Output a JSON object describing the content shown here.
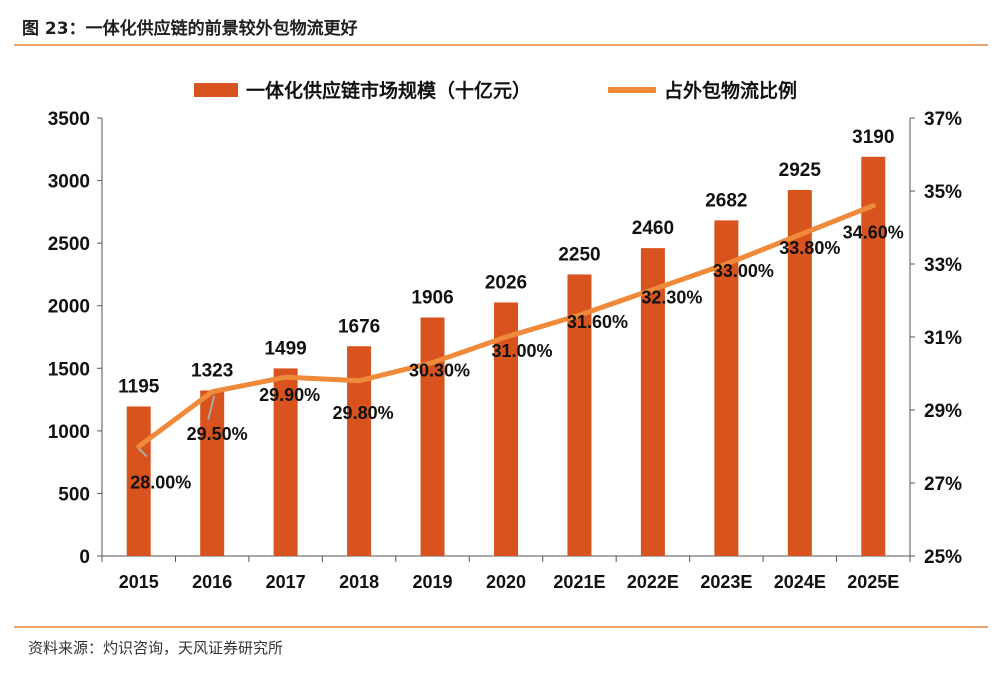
{
  "header": {
    "title": "图 23：一体化供应链的前景较外包物流更好"
  },
  "footer": {
    "source": "资料来源：灼识咨询，天风证券研究所"
  },
  "colors": {
    "bar": "#d9531e",
    "line": "#ef8a3a",
    "rule": "#e9a56c",
    "leader": "#aaaaaa"
  },
  "chart_data": {
    "type": "bar",
    "categories": [
      "2015",
      "2016",
      "2017",
      "2018",
      "2019",
      "2020",
      "2021E",
      "2022E",
      "2023E",
      "2024E",
      "2025E"
    ],
    "series": [
      {
        "name": "一体化供应链市场规模（十亿元）",
        "type": "bar",
        "axis": "left",
        "values": [
          1195,
          1323,
          1499,
          1676,
          1906,
          2026,
          2250,
          2460,
          2682,
          2925,
          3190
        ],
        "labels": [
          "1195",
          "1323",
          "1499",
          "1676",
          "1906",
          "2026",
          "2250",
          "2460",
          "2682",
          "2925",
          "3190"
        ]
      },
      {
        "name": "占外包物流比例",
        "type": "line",
        "axis": "right",
        "values": [
          28.0,
          29.5,
          29.9,
          29.8,
          30.3,
          31.0,
          31.6,
          32.3,
          33.0,
          33.8,
          34.6
        ],
        "labels": [
          "28.00%",
          "29.50%",
          "29.90%",
          "29.80%",
          "30.30%",
          "31.00%",
          "31.60%",
          "32.30%",
          "33.00%",
          "33.80%",
          "34.60%"
        ]
      }
    ],
    "y_left": {
      "range": [
        0,
        3500
      ],
      "ticks": [
        0,
        500,
        1000,
        1500,
        2000,
        2500,
        3000,
        3500
      ],
      "tick_labels": [
        "0",
        "500",
        "1000",
        "1500",
        "2000",
        "2500",
        "3000",
        "3500"
      ]
    },
    "y_right": {
      "range": [
        25,
        37
      ],
      "ticks": [
        25,
        27,
        29,
        31,
        33,
        35,
        37
      ],
      "tick_labels": [
        "25%",
        "27%",
        "29%",
        "31%",
        "33%",
        "35%",
        "37%"
      ]
    },
    "grid": false,
    "legend_position": "top"
  }
}
